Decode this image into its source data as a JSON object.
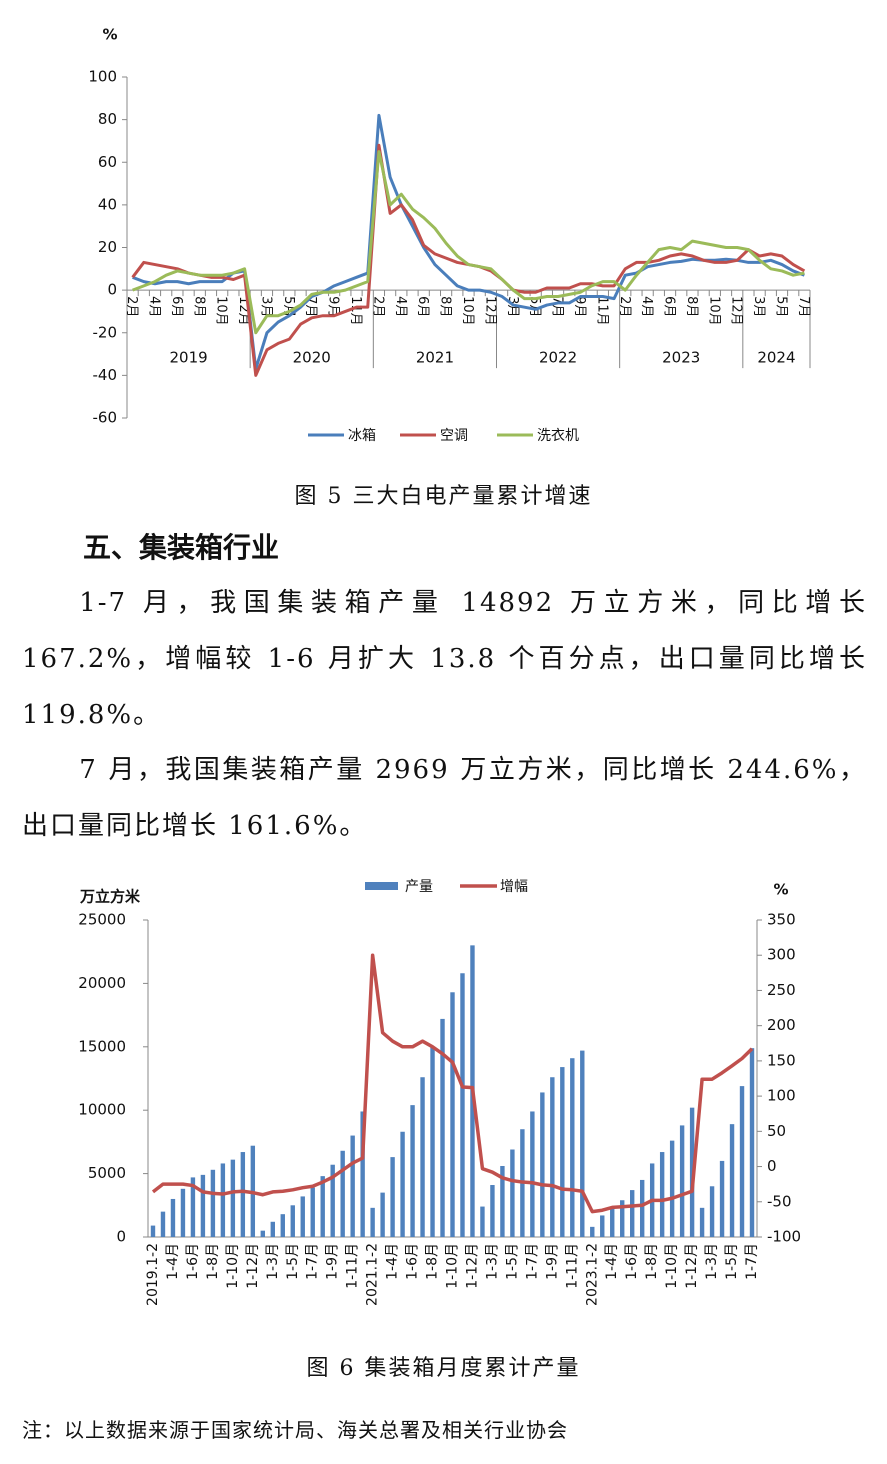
{
  "chart_data": [
    {
      "type": "line",
      "ylabel": "%",
      "ylim": [
        -60,
        100
      ],
      "yticks": [
        -60,
        -40,
        -20,
        0,
        20,
        40,
        60,
        80,
        100
      ],
      "category_groups": [
        {
          "label": "2019",
          "categories": [
            "2月",
            null,
            "4月",
            null,
            "6月",
            null,
            "8月",
            null,
            "10月",
            null,
            "12月"
          ]
        },
        {
          "label": "2020",
          "categories": [
            null,
            "3月",
            null,
            "5月",
            null,
            "7月",
            null,
            "9月",
            null,
            "11月",
            null
          ]
        },
        {
          "label": "2021",
          "categories": [
            "2月",
            null,
            "4月",
            null,
            "6月",
            null,
            "8月",
            null,
            "10月",
            null,
            "12月"
          ]
        },
        {
          "label": "2022",
          "categories": [
            null,
            "3月",
            null,
            "5月",
            null,
            "7月",
            null,
            "9月",
            null,
            "11月",
            null
          ]
        },
        {
          "label": "2023",
          "categories": [
            "2月",
            null,
            "4月",
            null,
            "6月",
            null,
            "8月",
            null,
            "10月",
            null,
            "12月"
          ]
        },
        {
          "label": "2024",
          "categories": [
            null,
            "3月",
            null,
            "5月",
            null,
            "7月"
          ]
        }
      ],
      "series": [
        {
          "name": "冰箱",
          "color": "#4a7ebb",
          "values": [
            6,
            4,
            3,
            4,
            4,
            3,
            4,
            4,
            4,
            8,
            9,
            -37,
            -20,
            -15,
            -12,
            -8,
            -3,
            -1,
            2,
            4,
            6,
            8,
            82,
            53,
            40,
            30,
            20,
            12,
            7,
            2,
            0,
            0,
            -1,
            -3,
            -7,
            -8,
            -9,
            -7,
            -6,
            -6,
            -3,
            -3,
            -3,
            -4,
            7,
            8,
            11,
            12,
            13,
            13.5,
            14.5,
            14,
            14,
            14.5,
            14,
            13,
            13,
            14,
            12,
            9,
            7
          ]
        },
        {
          "name": "空调",
          "color": "#c0504d",
          "values": [
            6,
            13,
            12,
            11,
            10,
            8,
            7,
            6,
            6,
            5,
            7,
            -40,
            -28,
            -25,
            -23,
            -16,
            -13,
            -12,
            -12,
            -10,
            -8,
            -8,
            68,
            36,
            40,
            33,
            21,
            17,
            15,
            13,
            12,
            11,
            9,
            5,
            0,
            -1,
            -1,
            1,
            1,
            1,
            3,
            3,
            2,
            2,
            10,
            13,
            13,
            14,
            16,
            17,
            16,
            14,
            13,
            13,
            14,
            19,
            16,
            17,
            16,
            12,
            9
          ]
        },
        {
          "name": "洗衣机",
          "color": "#9bbb59",
          "values": [
            0,
            2,
            4,
            7,
            9,
            8,
            7,
            7,
            7,
            8,
            10,
            -20,
            -12,
            -12,
            -10,
            -7,
            -2,
            -1,
            -1,
            0,
            2,
            4,
            65,
            40,
            45,
            38,
            34,
            29,
            22,
            16,
            12,
            11,
            10,
            5,
            0,
            -4,
            -4,
            -3,
            -3,
            -2,
            -1,
            2,
            4,
            4,
            0,
            7,
            13,
            19,
            20,
            19,
            23,
            22,
            21,
            20,
            20,
            19,
            14,
            10,
            9,
            7,
            8
          ]
        }
      ]
    },
    {
      "type": "bar",
      "ylabel": "万立方米",
      "y2label": "%",
      "ylim": [
        0,
        25000
      ],
      "yticks": [
        0,
        5000,
        10000,
        15000,
        20000,
        25000
      ],
      "y2lim": [
        -100,
        350
      ],
      "y2ticks": [
        -100,
        -50,
        0,
        50,
        100,
        150,
        200,
        250,
        300,
        350
      ],
      "categories": [
        "2019.1-2",
        null,
        "1-4月",
        null,
        "1-6月",
        null,
        "1-8月",
        null,
        "1-10月",
        null,
        "1-12月",
        null,
        "1-3月",
        null,
        "1-5月",
        null,
        "1-7月",
        null,
        "1-9月",
        null,
        "1-11月",
        null,
        "2021.1-2",
        null,
        "1-4月",
        null,
        "1-6月",
        null,
        "1-8月",
        null,
        "1-10月",
        null,
        "1-12月",
        null,
        "1-3月",
        null,
        "1-5月",
        null,
        "1-7月",
        null,
        "1-9月",
        null,
        "1-11月",
        null,
        "2023.1-2",
        null,
        "1-4月",
        null,
        "1-6月",
        null,
        "1-8月",
        null,
        "1-10月",
        null,
        "1-12月",
        null,
        "1-3月",
        null,
        "1-5月",
        null,
        "1-7月"
      ],
      "series": [
        {
          "name": "产量",
          "type": "bar",
          "color": "#4f81bd",
          "values": [
            900,
            2000,
            3000,
            3800,
            4700,
            4900,
            5300,
            5800,
            6100,
            6700,
            7200,
            500,
            1200,
            1800,
            2500,
            3200,
            3900,
            4800,
            5700,
            6800,
            8000,
            9900,
            2300,
            3500,
            6300,
            8300,
            10400,
            12600,
            15000,
            17200,
            19300,
            20800,
            23000,
            2400,
            4100,
            5600,
            6900,
            8500,
            9900,
            11400,
            12600,
            13400,
            14100,
            14700,
            800,
            1700,
            2400,
            2900,
            3700,
            4500,
            5800,
            6700,
            7600,
            8800,
            10200,
            2300,
            4000,
            6000,
            8900,
            11900,
            14892
          ]
        },
        {
          "name": "增幅",
          "type": "line",
          "axis": "y2",
          "color": "#c0504d",
          "values": [
            -36,
            -25,
            -25,
            -25,
            -27,
            -36,
            -38,
            -39,
            -36,
            -35,
            -37,
            -40,
            -36,
            -35,
            -33,
            -30,
            -28,
            -22,
            -15,
            -5,
            5,
            12,
            300,
            190,
            178,
            170,
            170,
            178,
            170,
            160,
            148,
            113,
            112,
            -3,
            -8,
            -16,
            -20,
            -22,
            -23,
            -26,
            -27,
            -32,
            -33,
            -35,
            -64,
            -62,
            -58,
            -57,
            -56,
            -55,
            -48,
            -48,
            -45,
            -40,
            -35,
            124,
            124,
            133,
            143,
            153.4,
            167.2
          ]
        }
      ]
    }
  ],
  "text": {
    "caption1": "图 5  三大白电产量累计增速",
    "heading": "五、集装箱行业",
    "paragraphs": [
      "1-7 月，我国集装箱产量 14892 万立方米，同比增长167.2%，增幅较 1-6 月扩大 13.8 个百分点，出口量同比增长119.8%。",
      "7 月，我国集装箱产量 2969 万立方米，同比增长 244.6%，出口量同比增长 161.6%。"
    ],
    "caption2": "图 6  集装箱月度累计产量",
    "note": "注：以上数据来源于国家统计局、海关总署及相关行业协会"
  }
}
